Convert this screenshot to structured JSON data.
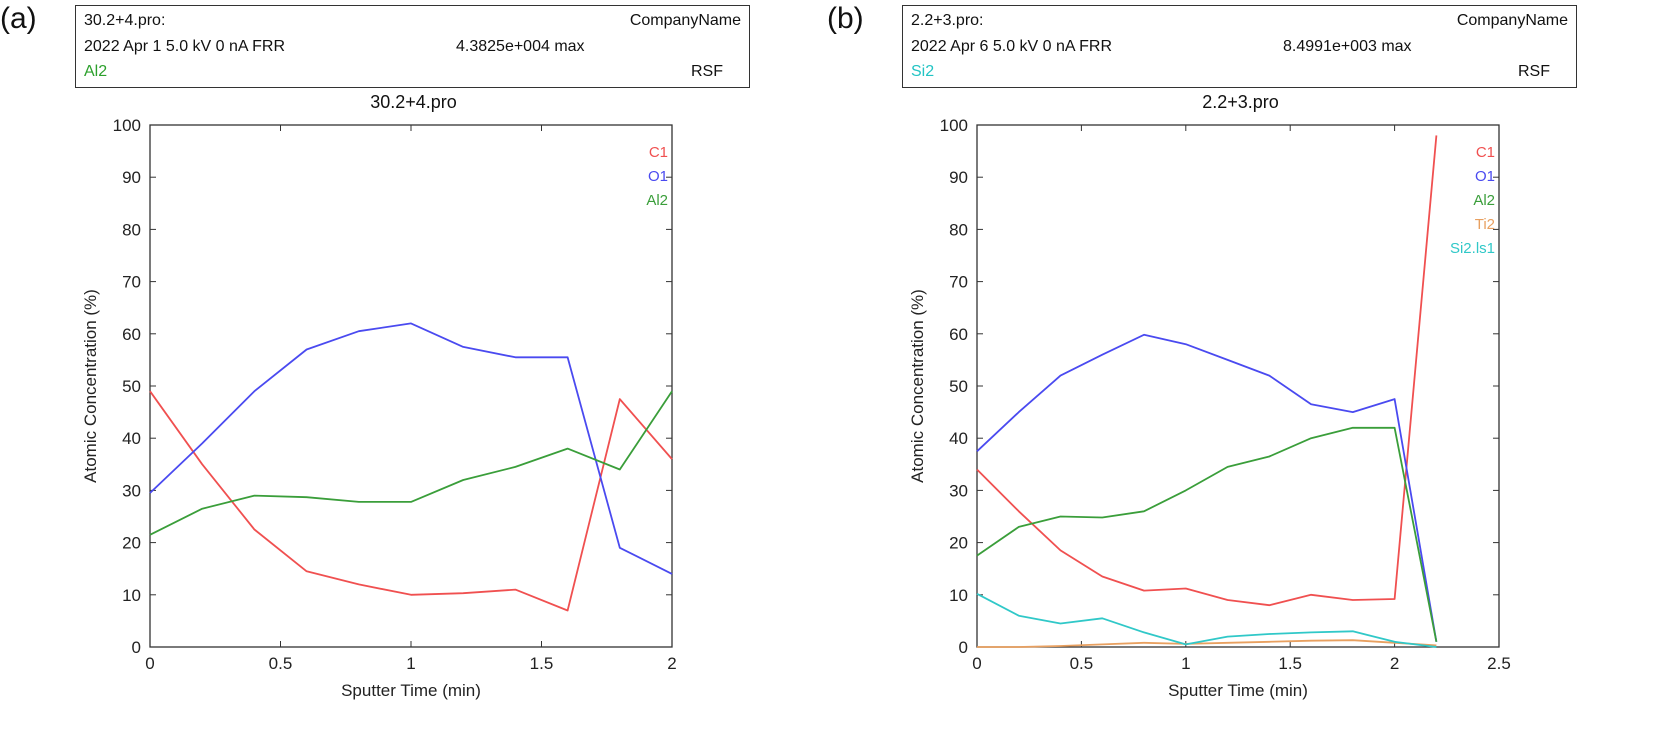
{
  "panels": [
    {
      "letter": "(a)",
      "info": {
        "filename": "30.2+4.pro:",
        "company": "CompanyName",
        "date_line": "2022 Apr 1  5.0 kV  0 nA  FRR",
        "max_text": "4.3825e+004 max",
        "element": "Al2",
        "element_color": "#2ca02c",
        "rsf": "RSF"
      }
    },
    {
      "letter": "(b)",
      "info": {
        "filename": "2.2+3.pro:",
        "company": "CompanyName",
        "date_line": "2022 Apr 6  5.0 kV  0 nA  FRR",
        "max_text": "8.4991e+003 max",
        "element": "Si2",
        "element_color": "#22c4c4",
        "rsf": "RSF"
      }
    }
  ],
  "chart_data": [
    {
      "type": "line",
      "title": "30.2+4.pro",
      "xlabel": "Sputter Time (min)",
      "ylabel": "Atomic Concentration (%)",
      "xlim": [
        0,
        2
      ],
      "ylim": [
        0,
        100
      ],
      "xticks": [
        "0",
        "0.5",
        "1",
        "1.5",
        "2"
      ],
      "yticks": [
        "0",
        "10",
        "20",
        "30",
        "40",
        "50",
        "60",
        "70",
        "80",
        "90",
        "100"
      ],
      "legend_position": "top-right",
      "grid": false,
      "x": [
        0,
        0.2,
        0.4,
        0.6,
        0.8,
        1.0,
        1.2,
        1.4,
        1.6,
        1.8,
        2.0
      ],
      "series": [
        {
          "name": "C1",
          "color": "#f05050",
          "values": [
            49,
            35,
            22.5,
            14.5,
            12,
            10,
            10.3,
            11,
            7,
            47.5,
            36
          ]
        },
        {
          "name": "O1",
          "color": "#4a4af0",
          "values": [
            29.5,
            39,
            49,
            57,
            60.5,
            62,
            57.5,
            55.5,
            55.5,
            19,
            14
          ]
        },
        {
          "name": "Al2",
          "color": "#3a9e3a",
          "values": [
            21.5,
            26.5,
            29,
            28.7,
            27.8,
            27.8,
            32,
            34.5,
            38,
            34,
            49
          ]
        }
      ]
    },
    {
      "type": "line",
      "title": "2.2+3.pro",
      "xlabel": "Sputter Time (min)",
      "ylabel": "Atomic Concentration (%)",
      "xlim": [
        0,
        2.5
      ],
      "ylim": [
        0,
        100
      ],
      "xticks": [
        "0",
        "0.5",
        "1",
        "1.5",
        "2",
        "2.5"
      ],
      "yticks": [
        "0",
        "10",
        "20",
        "30",
        "40",
        "50",
        "60",
        "70",
        "80",
        "90",
        "100"
      ],
      "legend_position": "top-right",
      "grid": false,
      "x": [
        0,
        0.2,
        0.4,
        0.6,
        0.8,
        1.0,
        1.2,
        1.4,
        1.6,
        1.8,
        2.0,
        2.2
      ],
      "series": [
        {
          "name": "C1",
          "color": "#f05050",
          "values": [
            34,
            26,
            18.5,
            13.5,
            10.8,
            11.2,
            9,
            8,
            10,
            9,
            9.2,
            98
          ]
        },
        {
          "name": "O1",
          "color": "#4a4af0",
          "values": [
            37.5,
            45,
            52,
            56,
            59.8,
            58,
            55,
            52,
            46.5,
            45,
            47.5,
            1
          ]
        },
        {
          "name": "Al2",
          "color": "#3a9e3a",
          "values": [
            17.5,
            23,
            25,
            24.8,
            26,
            30,
            34.5,
            36.5,
            40,
            42,
            42,
            1
          ]
        },
        {
          "name": "Ti2",
          "color": "#e8a060",
          "values": [
            0,
            0,
            0.2,
            0.5,
            0.8,
            0.6,
            0.8,
            1,
            1.2,
            1.3,
            0.8,
            0.3
          ]
        },
        {
          "name": "Si2.ls1",
          "color": "#30c8c8",
          "values": [
            10.2,
            6,
            4.5,
            5.5,
            2.8,
            0.5,
            2,
            2.5,
            2.8,
            3,
            1,
            0
          ]
        }
      ]
    }
  ]
}
